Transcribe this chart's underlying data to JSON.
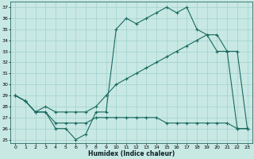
{
  "xlabel": "Humidex (Indice chaleur)",
  "bg_color": "#c8e8e4",
  "grid_color": "#96ccc8",
  "line_color": "#1a6a60",
  "xlim_min": -0.5,
  "xlim_max": 23.5,
  "ylim_min": 24.7,
  "ylim_max": 37.5,
  "xticks": [
    0,
    1,
    2,
    3,
    4,
    5,
    6,
    7,
    8,
    9,
    10,
    11,
    12,
    13,
    14,
    15,
    16,
    17,
    18,
    19,
    20,
    21,
    22,
    23
  ],
  "yticks": [
    25,
    26,
    27,
    28,
    29,
    30,
    31,
    32,
    33,
    34,
    35,
    36,
    37
  ],
  "line1_x": [
    0,
    1,
    2,
    3,
    4,
    5,
    6,
    7,
    8,
    9,
    10,
    11,
    12,
    13,
    14,
    15,
    16,
    17,
    18,
    19,
    20,
    21,
    22,
    23
  ],
  "line1_y": [
    29,
    28.5,
    27.5,
    27.5,
    26,
    26,
    25,
    25.5,
    27.5,
    27.5,
    35,
    36,
    35.5,
    36,
    36.5,
    37,
    36.5,
    37,
    35,
    34.5,
    33,
    33,
    26,
    26
  ],
  "line2_x": [
    0,
    1,
    2,
    3,
    4,
    5,
    6,
    7,
    8,
    9,
    10,
    11,
    12,
    13,
    14,
    15,
    16,
    17,
    18,
    19,
    20,
    21,
    22,
    23
  ],
  "line2_y": [
    29,
    28.5,
    27.5,
    28,
    27.5,
    27.5,
    27.5,
    27.5,
    28,
    29,
    30,
    30.5,
    31,
    31.5,
    32,
    32.5,
    33,
    33.5,
    34,
    34.5,
    34.5,
    33,
    33,
    26
  ],
  "line3_x": [
    0,
    1,
    2,
    3,
    4,
    5,
    6,
    7,
    8,
    9,
    10,
    11,
    12,
    13,
    14,
    15,
    16,
    17,
    18,
    19,
    20,
    21,
    22,
    23
  ],
  "line3_y": [
    29,
    28.5,
    27.5,
    27.5,
    26.5,
    26.5,
    26.5,
    26.5,
    27,
    27,
    27,
    27,
    27,
    27,
    27,
    26.5,
    26.5,
    26.5,
    26.5,
    26.5,
    26.5,
    26.5,
    26,
    26
  ]
}
